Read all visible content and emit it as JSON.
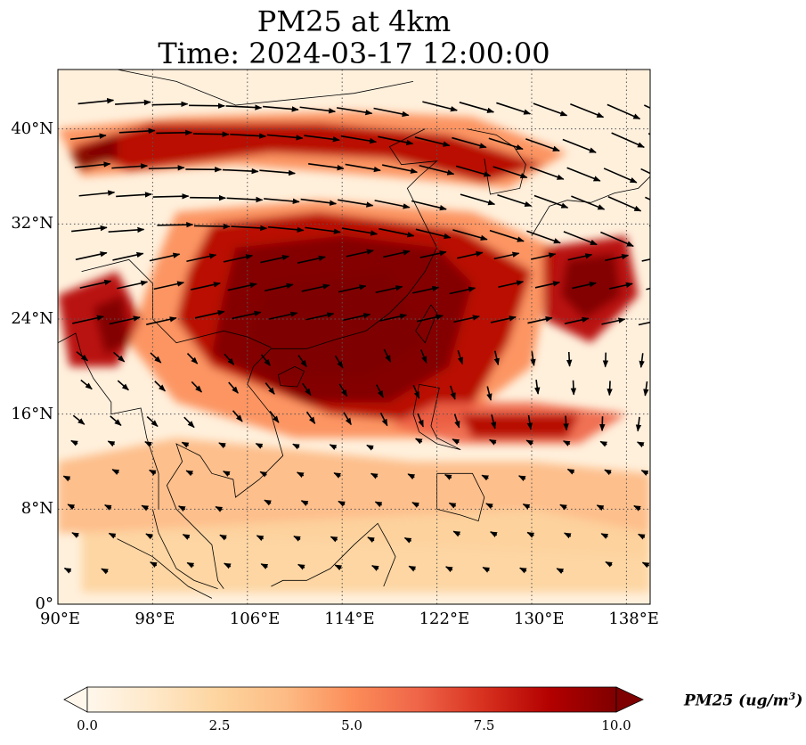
{
  "title": {
    "line1": "PM25 at 4km",
    "line2": "Time: 2024-03-17 12:00:00"
  },
  "map": {
    "extent": {
      "lon": [
        90,
        140
      ],
      "lat": [
        0,
        45
      ]
    },
    "x_ticks": [
      {
        "lon": 90,
        "label": "90°E"
      },
      {
        "lon": 98,
        "label": "98°E"
      },
      {
        "lon": 106,
        "label": "106°E"
      },
      {
        "lon": 114,
        "label": "114°E"
      },
      {
        "lon": 122,
        "label": "122°E"
      },
      {
        "lon": 130,
        "label": "130°E"
      },
      {
        "lon": 138,
        "label": "138°E"
      }
    ],
    "y_ticks": [
      {
        "lat": 0,
        "label": "0°"
      },
      {
        "lat": 8,
        "label": "8°N"
      },
      {
        "lat": 16,
        "label": "16°N"
      },
      {
        "lat": 24,
        "label": "24°N"
      },
      {
        "lat": 32,
        "label": "32°N"
      },
      {
        "lat": 40,
        "label": "40°N"
      }
    ],
    "gridlines": "dotted",
    "features": [
      "coastlines",
      "borders",
      "wind-vectors"
    ]
  },
  "colorbar": {
    "label": "PM25 (ug/m",
    "label_sup": "3",
    "label_close": ")",
    "min": 0.0,
    "max": 10.0,
    "extend": "both",
    "ticks": [
      "0.0",
      "2.5",
      "5.0",
      "7.5",
      "10.0"
    ],
    "colormap": "OrRd",
    "colors": [
      "#fff7ec",
      "#fee8c8",
      "#fdd49e",
      "#fdbb84",
      "#fc8d59",
      "#ef6548",
      "#d7301f",
      "#b30000",
      "#7f0000"
    ]
  }
}
